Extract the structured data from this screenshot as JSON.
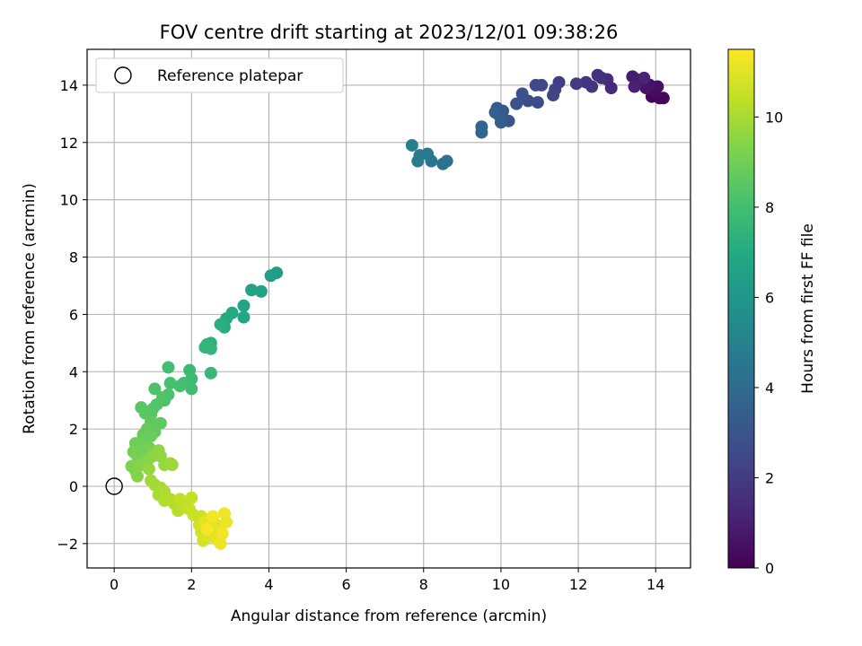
{
  "chart_data": {
    "type": "scatter",
    "title": "FOV centre drift starting at 2023/12/01 09:38:26",
    "xlabel": "Angular distance from reference (arcmin)",
    "ylabel": "Rotation from reference (arcmin)",
    "xlim": [
      -0.7,
      14.9
    ],
    "ylim": [
      -2.85,
      15.25
    ],
    "xticks": [
      0,
      2,
      4,
      6,
      8,
      10,
      12,
      14
    ],
    "yticks": [
      -2,
      0,
      2,
      4,
      6,
      8,
      10,
      12,
      14
    ],
    "xtick_labels": [
      "0",
      "2",
      "4",
      "6",
      "8",
      "10",
      "12",
      "14"
    ],
    "ytick_labels": [
      "−2",
      "0",
      "2",
      "4",
      "6",
      "8",
      "10",
      "12",
      "14"
    ],
    "grid": true,
    "legend": {
      "placement": "upper-left",
      "entries": [
        "Reference platepar"
      ]
    },
    "reference_point": {
      "x": 0,
      "y": 0,
      "label": "Reference platepar"
    },
    "colorbar": {
      "label": "Hours from first FF file",
      "colormap": "viridis",
      "range": [
        0,
        11.5
      ],
      "ticks": [
        0,
        2,
        4,
        6,
        8,
        10
      ],
      "tick_labels": [
        "0",
        "2",
        "4",
        "6",
        "8",
        "10"
      ]
    },
    "series": [
      {
        "points": [
          [
            13.9,
            13.6,
            0.15
          ],
          [
            14.1,
            13.55,
            0.2
          ],
          [
            14.2,
            13.55,
            0.25
          ],
          [
            13.95,
            13.8,
            0.35
          ],
          [
            14.05,
            13.95,
            0.45
          ],
          [
            13.85,
            14.0,
            0.55
          ],
          [
            13.75,
            13.9,
            0.65
          ],
          [
            13.6,
            14.1,
            0.75
          ],
          [
            13.5,
            14.2,
            0.85
          ],
          [
            13.4,
            14.3,
            0.95
          ],
          [
            13.45,
            13.95,
            1.05
          ],
          [
            13.7,
            14.25,
            1.15
          ],
          [
            12.85,
            13.9,
            1.35
          ],
          [
            12.75,
            14.2,
            1.45
          ],
          [
            12.6,
            14.25,
            1.55
          ],
          [
            12.5,
            14.35,
            1.65
          ],
          [
            12.35,
            13.95,
            1.75
          ],
          [
            12.2,
            14.1,
            1.85
          ],
          [
            11.95,
            14.05,
            1.95
          ],
          [
            11.5,
            14.1,
            2.1
          ],
          [
            11.4,
            13.85,
            2.2
          ],
          [
            11.35,
            13.65,
            2.3
          ],
          [
            11.05,
            14.0,
            2.4
          ],
          [
            10.9,
            14.0,
            2.5
          ],
          [
            10.95,
            13.4,
            2.6
          ],
          [
            10.7,
            13.45,
            2.7
          ],
          [
            10.55,
            13.7,
            2.8
          ],
          [
            10.4,
            13.35,
            2.9
          ],
          [
            10.2,
            12.75,
            3.0
          ],
          [
            10.05,
            13.1,
            3.1
          ],
          [
            9.95,
            12.95,
            3.2
          ],
          [
            9.9,
            13.2,
            3.3
          ],
          [
            10.0,
            12.7,
            3.4
          ],
          [
            9.85,
            13.05,
            3.5
          ],
          [
            9.5,
            12.55,
            3.7
          ],
          [
            9.5,
            12.35,
            3.8
          ],
          [
            8.6,
            11.35,
            4.3
          ],
          [
            8.5,
            11.25,
            4.4
          ],
          [
            8.2,
            11.35,
            4.5
          ],
          [
            8.1,
            11.6,
            4.6
          ],
          [
            7.9,
            11.55,
            4.7
          ],
          [
            7.85,
            11.35,
            4.8
          ],
          [
            7.7,
            11.9,
            4.9
          ],
          [
            4.2,
            7.45,
            6.3
          ],
          [
            4.05,
            7.35,
            6.4
          ],
          [
            3.8,
            6.8,
            6.55
          ],
          [
            3.55,
            6.85,
            6.65
          ],
          [
            3.35,
            6.3,
            6.75
          ],
          [
            3.35,
            5.9,
            6.85
          ],
          [
            3.05,
            6.05,
            6.95
          ],
          [
            2.9,
            5.85,
            7.05
          ],
          [
            2.85,
            5.55,
            7.15
          ],
          [
            2.75,
            5.65,
            7.25
          ],
          [
            2.5,
            5.0,
            7.35
          ],
          [
            2.4,
            4.95,
            7.45
          ],
          [
            2.35,
            4.85,
            7.5
          ],
          [
            2.5,
            4.8,
            7.55
          ],
          [
            2.5,
            3.95,
            7.65
          ],
          [
            1.95,
            4.05,
            7.75
          ],
          [
            2.0,
            3.75,
            7.85
          ],
          [
            2.0,
            3.4,
            7.9
          ],
          [
            1.8,
            3.6,
            7.95
          ],
          [
            1.4,
            4.15,
            8.0
          ],
          [
            1.7,
            3.5,
            8.05
          ],
          [
            1.45,
            3.6,
            8.1
          ],
          [
            1.4,
            3.2,
            8.15
          ],
          [
            1.3,
            3.0,
            8.2
          ],
          [
            1.05,
            3.4,
            8.25
          ],
          [
            1.25,
            3.1,
            8.3
          ],
          [
            1.1,
            2.85,
            8.35
          ],
          [
            1.0,
            2.7,
            8.4
          ],
          [
            0.95,
            2.5,
            8.45
          ],
          [
            0.7,
            2.75,
            8.5
          ],
          [
            0.8,
            2.55,
            8.55
          ],
          [
            1.2,
            2.2,
            8.6
          ],
          [
            0.95,
            2.25,
            8.65
          ],
          [
            1.05,
            1.9,
            8.7
          ],
          [
            0.85,
            2.0,
            8.75
          ],
          [
            0.75,
            1.8,
            8.8
          ],
          [
            0.95,
            1.75,
            8.85
          ],
          [
            0.7,
            1.55,
            8.9
          ],
          [
            0.55,
            1.5,
            8.95
          ],
          [
            0.7,
            1.25,
            9.0
          ],
          [
            0.9,
            1.35,
            9.05
          ],
          [
            0.5,
            1.2,
            9.1
          ],
          [
            0.6,
            1.05,
            9.15
          ],
          [
            0.75,
            0.95,
            9.2
          ],
          [
            0.45,
            0.7,
            9.25
          ],
          [
            0.55,
            0.55,
            9.3
          ],
          [
            0.6,
            0.35,
            9.35
          ],
          [
            0.7,
            0.75,
            9.4
          ],
          [
            0.85,
            0.85,
            9.45
          ],
          [
            1.0,
            1.05,
            9.5
          ],
          [
            1.15,
            1.25,
            9.55
          ],
          [
            1.2,
            1.05,
            9.6
          ],
          [
            0.9,
            0.6,
            9.65
          ],
          [
            1.3,
            0.75,
            9.7
          ],
          [
            1.45,
            0.8,
            9.75
          ],
          [
            1.5,
            0.75,
            9.8
          ],
          [
            0.95,
            0.2,
            9.85
          ],
          [
            1.05,
            0.05,
            9.9
          ],
          [
            1.2,
            -0.05,
            9.95
          ],
          [
            1.15,
            -0.3,
            10.0
          ],
          [
            1.3,
            -0.2,
            10.05
          ],
          [
            1.45,
            -0.45,
            10.1
          ],
          [
            1.3,
            -0.5,
            10.15
          ],
          [
            1.55,
            -0.6,
            10.2
          ],
          [
            1.65,
            -0.85,
            10.25
          ],
          [
            1.75,
            -0.65,
            10.3
          ],
          [
            1.85,
            -0.75,
            10.35
          ],
          [
            1.7,
            -0.45,
            10.4
          ],
          [
            2.0,
            -0.4,
            10.45
          ],
          [
            1.95,
            -0.8,
            10.5
          ],
          [
            2.05,
            -1.0,
            10.55
          ],
          [
            2.25,
            -1.05,
            10.6
          ],
          [
            2.2,
            -1.35,
            10.65
          ],
          [
            2.35,
            -1.15,
            10.7
          ],
          [
            2.25,
            -1.6,
            10.75
          ],
          [
            2.3,
            -1.9,
            10.8
          ],
          [
            2.5,
            -1.45,
            10.85
          ],
          [
            2.45,
            -1.75,
            10.9
          ],
          [
            2.6,
            -1.3,
            10.95
          ],
          [
            2.35,
            -1.25,
            11.0
          ],
          [
            2.7,
            -1.55,
            11.05
          ],
          [
            2.65,
            -1.85,
            11.1
          ],
          [
            2.75,
            -2.0,
            11.15
          ],
          [
            2.9,
            -1.25,
            11.2
          ],
          [
            2.85,
            -0.95,
            11.25
          ],
          [
            2.55,
            -1.05,
            11.3
          ],
          [
            2.8,
            -1.65,
            11.35
          ],
          [
            2.4,
            -1.5,
            11.4
          ]
        ]
      }
    ]
  }
}
